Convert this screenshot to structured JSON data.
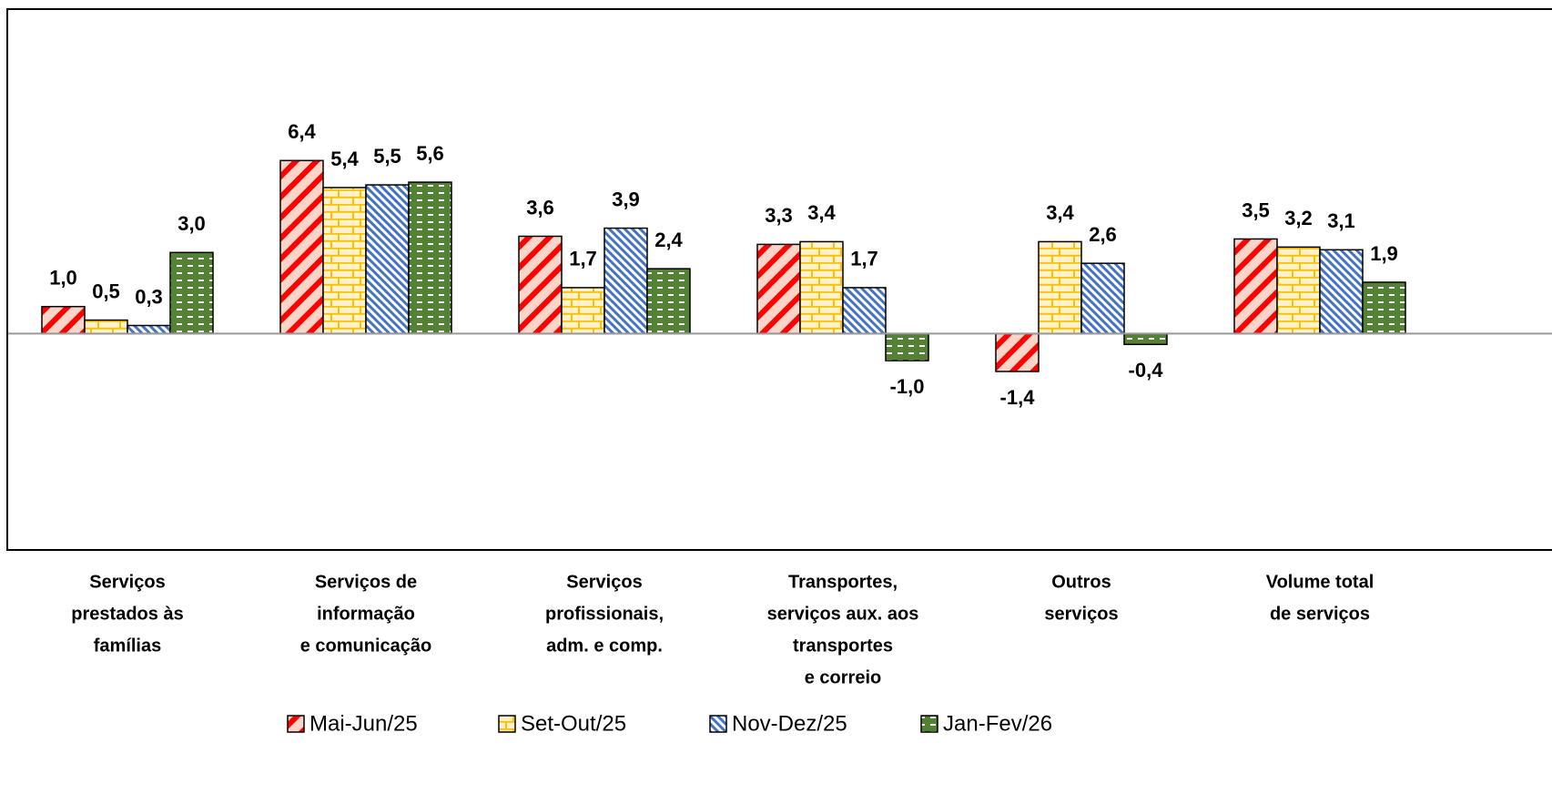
{
  "chart_data": {
    "type": "bar",
    "categories": [
      [
        "Serviços",
        "prestados às",
        "famílias"
      ],
      [
        "Serviços de",
        "informação",
        "e comunicação"
      ],
      [
        "Serviços",
        "profissionais,",
        "adm. e comp."
      ],
      [
        "Transportes,",
        "serviços aux. aos",
        "transportes",
        "e correio"
      ],
      [
        "Outros",
        "serviços"
      ],
      [
        "Volume total",
        "de serviços"
      ]
    ],
    "series": [
      {
        "name": "Mai-Jun/25",
        "color": "#ff0000",
        "values": [
          1.0,
          6.4,
          3.6,
          3.3,
          -1.4,
          3.5
        ],
        "value_labels": [
          "1,0",
          "6,4",
          "3,6",
          "3,3",
          "-1,4",
          "3,5"
        ]
      },
      {
        "name": "Set-Out/25",
        "color": "#ffc000",
        "values": [
          0.5,
          5.4,
          1.7,
          3.4,
          3.4,
          3.2
        ],
        "value_labels": [
          "0,5",
          "5,4",
          "1,7",
          "3,4",
          "3,4",
          "3,2"
        ]
      },
      {
        "name": "Nov-Dez/25",
        "color": "#4472c4",
        "values": [
          0.3,
          5.5,
          3.9,
          1.7,
          2.6,
          3.1
        ],
        "value_labels": [
          "0,3",
          "5,5",
          "3,9",
          "1,7",
          "2,6",
          "3,1"
        ]
      },
      {
        "name": "Jan-Fev/26",
        "color": "#548235",
        "values": [
          3.0,
          5.6,
          2.4,
          -1.0,
          -0.4,
          1.9
        ],
        "value_labels": [
          "3,0",
          "5,6",
          "2,4",
          "-1,0",
          "-0,4",
          "1,9"
        ]
      }
    ],
    "ylim": [
      -8,
      12
    ],
    "legend": "bottom"
  }
}
